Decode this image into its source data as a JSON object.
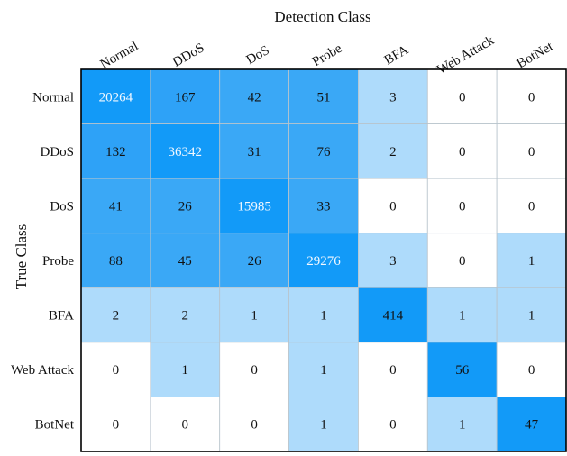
{
  "chart_data": {
    "type": "heatmap",
    "title": "",
    "xlabel": "Detection Class",
    "ylabel": "True Class",
    "x_categories": [
      "Normal",
      "DDoS",
      "DoS",
      "Probe",
      "BFA",
      "Web Attack",
      "BotNet"
    ],
    "y_categories": [
      "Normal",
      "DDoS",
      "DoS",
      "Probe",
      "BFA",
      "Web Attack",
      "BotNet"
    ],
    "values": [
      [
        20264,
        167,
        42,
        51,
        3,
        0,
        0
      ],
      [
        132,
        36342,
        31,
        76,
        2,
        0,
        0
      ],
      [
        41,
        26,
        15985,
        33,
        0,
        0,
        0
      ],
      [
        88,
        45,
        26,
        29276,
        3,
        0,
        1
      ],
      [
        2,
        2,
        1,
        1,
        414,
        1,
        1
      ],
      [
        0,
        1,
        0,
        1,
        0,
        56,
        0
      ],
      [
        0,
        0,
        0,
        1,
        0,
        1,
        47
      ]
    ],
    "color_levels": [
      {
        "min": 0,
        "max": 0,
        "color": "#ffffff"
      },
      {
        "min": 1,
        "max": 9,
        "color": "#aedbfb"
      },
      {
        "min": 10,
        "max": 99,
        "color": "#3aa8f6"
      },
      {
        "min": 100,
        "max": 9999,
        "color": "#2ea2f7"
      },
      {
        "min": 10000,
        "max": 1000000000,
        "color": "#129af8"
      }
    ],
    "diagonal_color": "#129af8",
    "colorbar": false,
    "grid": true
  }
}
